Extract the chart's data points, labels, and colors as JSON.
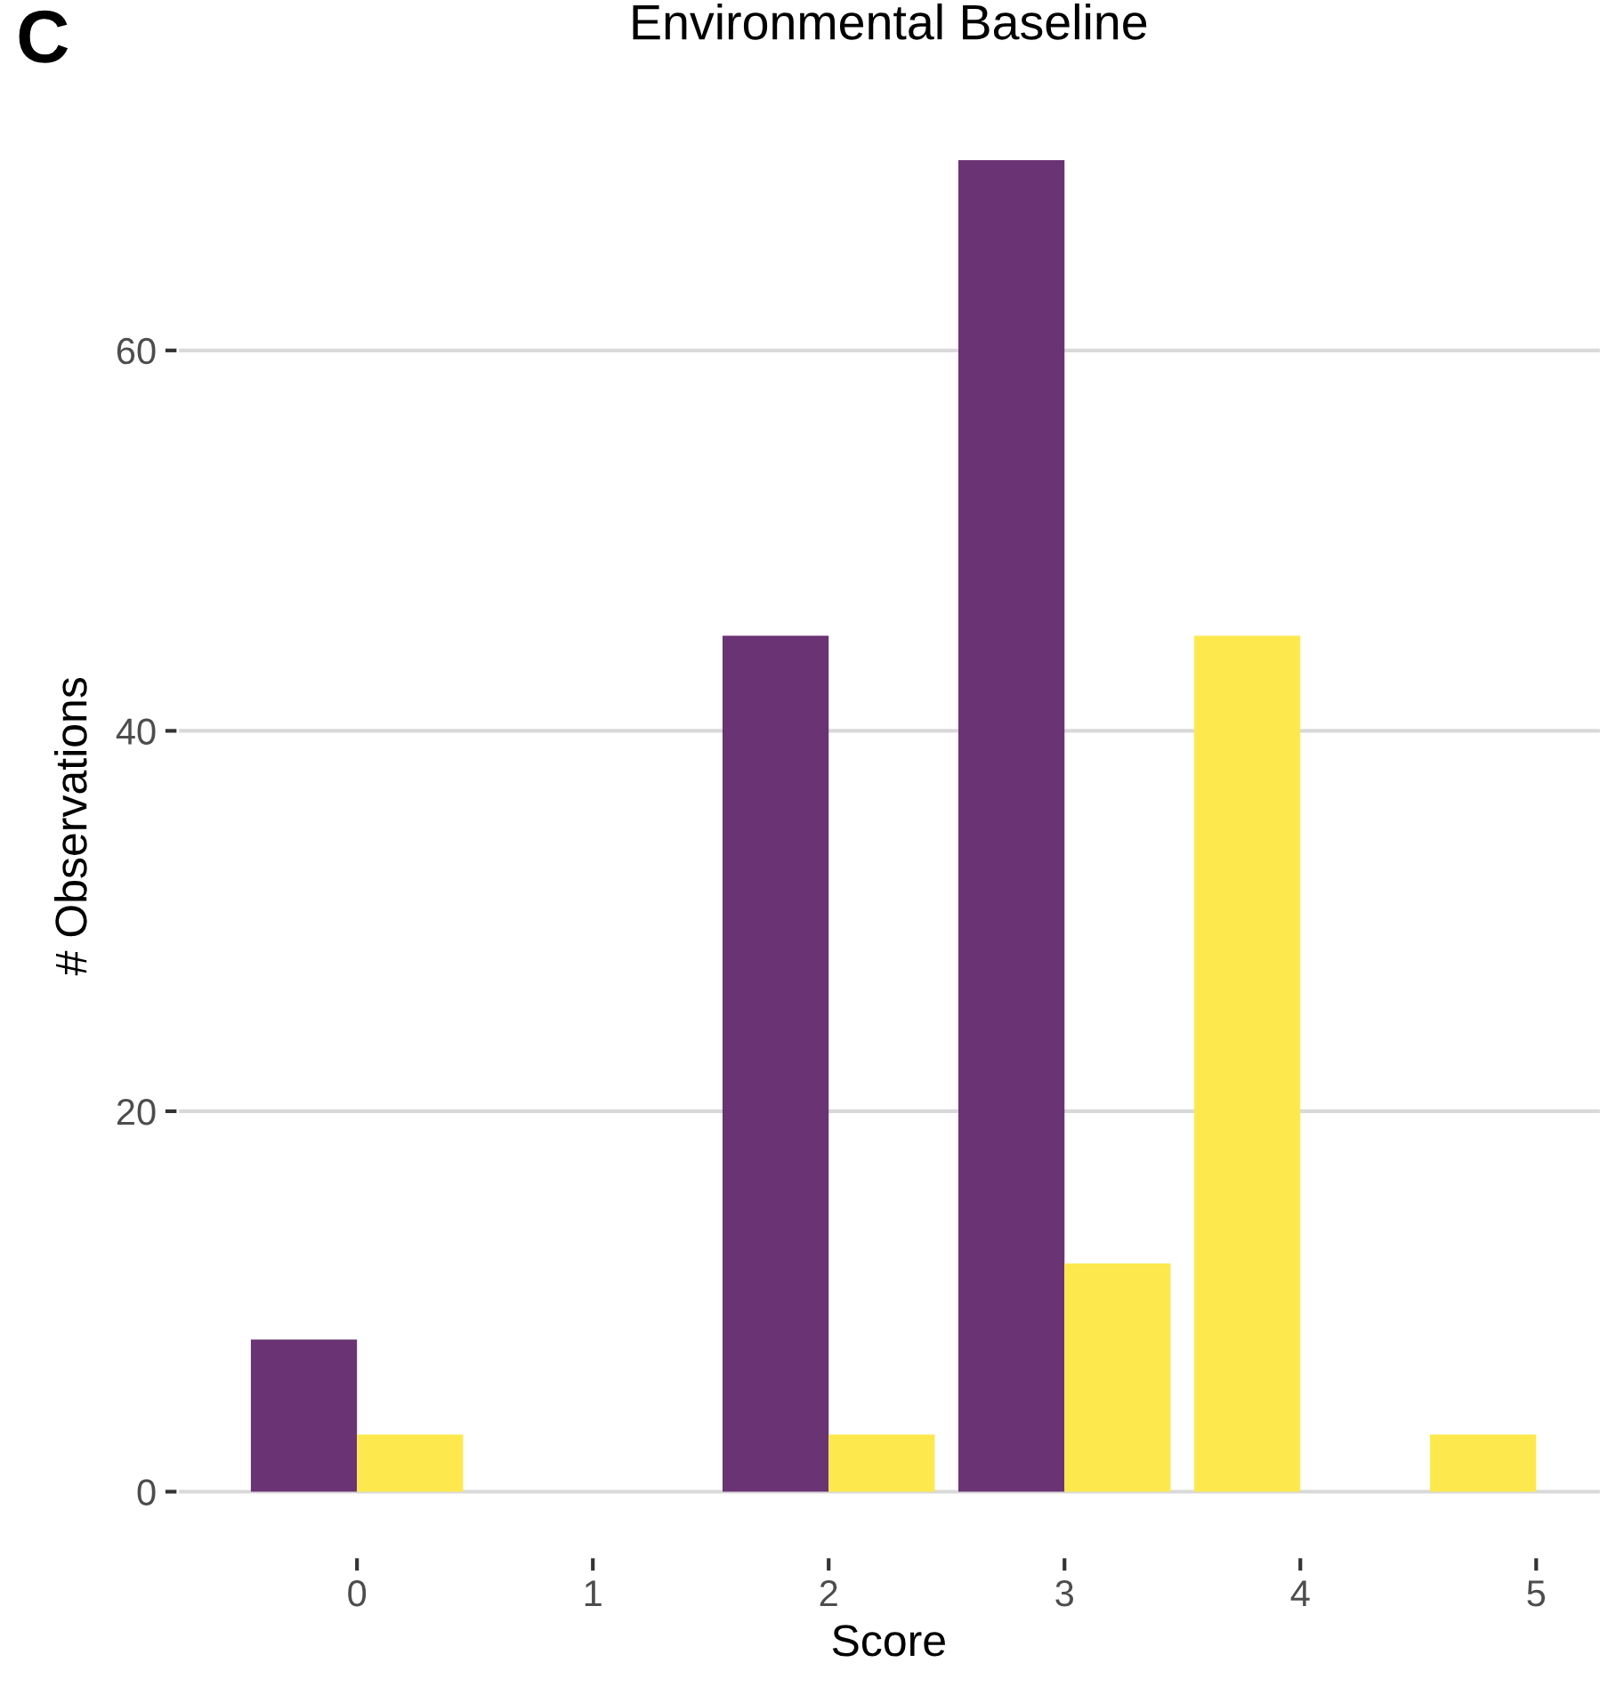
{
  "chart_data": {
    "type": "bar",
    "title": "Environmental Baseline",
    "xlabel": "Score",
    "ylabel": "# Observations",
    "annotations": [
      "C"
    ],
    "series": [
      {
        "color": "#6a3373",
        "x": [
          -0.225,
          1.775,
          2.775
        ],
        "values": [
          8,
          45,
          70
        ]
      },
      {
        "color": "#fde94d",
        "x": [
          0.225,
          2.225,
          3.225,
          3.775,
          4.775
        ],
        "values": [
          3,
          3,
          12,
          45,
          3
        ]
      }
    ],
    "xlim": [
      -0.76,
      5.27
    ],
    "xticks": [
      0,
      1,
      2,
      3,
      4,
      5
    ],
    "ylim": [
      -3.5,
      73.5
    ],
    "yticks": [
      0,
      20,
      40,
      60
    ],
    "grid": "y"
  }
}
